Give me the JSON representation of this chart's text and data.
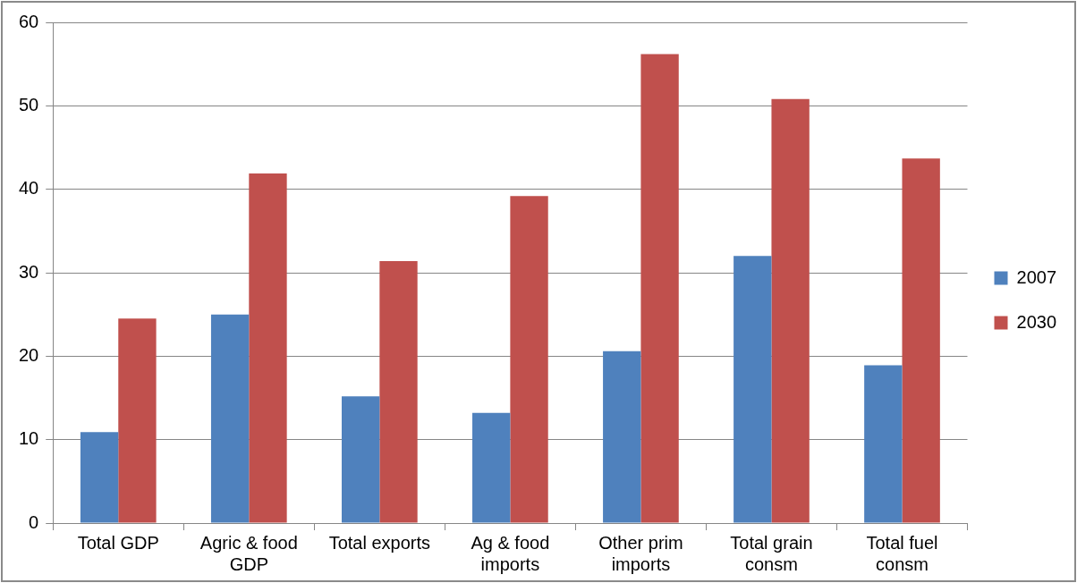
{
  "chart_data": {
    "type": "bar",
    "categories": [
      "Total GDP",
      "Agric & food GDP",
      "Total exports",
      "Ag & food imports",
      "Other prim imports",
      "Total grain consm",
      "Total fuel consm"
    ],
    "series": [
      {
        "name": "2007",
        "color": "#4f81bd",
        "values": [
          10.9,
          25,
          15.2,
          13.2,
          20.6,
          32,
          18.9
        ]
      },
      {
        "name": "2030",
        "color": "#c0504d",
        "values": [
          24.5,
          41.9,
          31.4,
          39.2,
          56.2,
          50.8,
          43.7
        ]
      }
    ],
    "ylim": [
      0,
      60
    ],
    "yticks": [
      0,
      10,
      20,
      30,
      40,
      50,
      60
    ],
    "grid": "y",
    "legend": "right"
  }
}
